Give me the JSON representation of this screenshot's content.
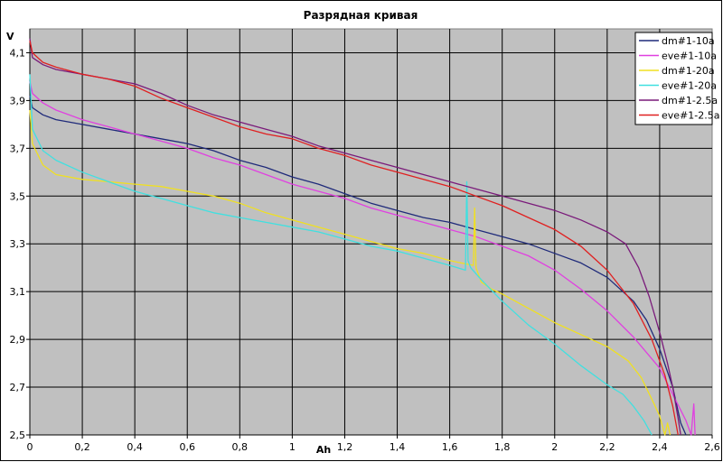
{
  "chart_data": {
    "type": "line",
    "title": "Разрядная кривая",
    "xlabel": "Ah",
    "ylabel": "V",
    "xlim": [
      0,
      2.6
    ],
    "ylim": [
      2.5,
      4.2
    ],
    "x_ticks": [
      "0",
      "0,2",
      "0,4",
      "0,6",
      "0,8",
      "1",
      "1,2",
      "1,4",
      "1,6",
      "1,8",
      "2",
      "2,2",
      "2,4",
      "2,6"
    ],
    "x_tick_values": [
      0,
      0.2,
      0.4,
      0.6,
      0.8,
      1.0,
      1.2,
      1.4,
      1.6,
      1.8,
      2.0,
      2.2,
      2.4,
      2.6
    ],
    "y_ticks": [
      "2,5",
      "2,7",
      "2,9",
      "3,1",
      "3,3",
      "3,5",
      "3,7",
      "3,9",
      "4,1"
    ],
    "y_tick_values": [
      2.5,
      2.7,
      2.9,
      3.1,
      3.3,
      3.5,
      3.7,
      3.9,
      4.1
    ],
    "grid": true,
    "plot_background": "#c0c0c0",
    "legend_position": "top-right",
    "series": [
      {
        "name": "dm#1-10a",
        "color": "#1f2a7a",
        "points": [
          [
            0,
            3.92
          ],
          [
            0.01,
            3.87
          ],
          [
            0.05,
            3.84
          ],
          [
            0.1,
            3.82
          ],
          [
            0.2,
            3.8
          ],
          [
            0.3,
            3.78
          ],
          [
            0.4,
            3.76
          ],
          [
            0.5,
            3.74
          ],
          [
            0.6,
            3.72
          ],
          [
            0.7,
            3.69
          ],
          [
            0.8,
            3.65
          ],
          [
            0.9,
            3.62
          ],
          [
            1.0,
            3.58
          ],
          [
            1.1,
            3.55
          ],
          [
            1.2,
            3.51
          ],
          [
            1.3,
            3.47
          ],
          [
            1.4,
            3.44
          ],
          [
            1.5,
            3.41
          ],
          [
            1.6,
            3.39
          ],
          [
            1.7,
            3.36
          ],
          [
            1.8,
            3.33
          ],
          [
            1.9,
            3.3
          ],
          [
            2.0,
            3.26
          ],
          [
            2.1,
            3.22
          ],
          [
            2.2,
            3.16
          ],
          [
            2.3,
            3.06
          ],
          [
            2.35,
            2.98
          ],
          [
            2.4,
            2.86
          ],
          [
            2.45,
            2.7
          ],
          [
            2.48,
            2.55
          ],
          [
            2.5,
            2.5
          ]
        ]
      },
      {
        "name": "eve#1-10a",
        "color": "#e040e0",
        "points": [
          [
            0,
            3.98
          ],
          [
            0.01,
            3.93
          ],
          [
            0.05,
            3.89
          ],
          [
            0.1,
            3.86
          ],
          [
            0.2,
            3.82
          ],
          [
            0.3,
            3.79
          ],
          [
            0.4,
            3.76
          ],
          [
            0.5,
            3.73
          ],
          [
            0.6,
            3.7
          ],
          [
            0.7,
            3.66
          ],
          [
            0.8,
            3.63
          ],
          [
            0.9,
            3.59
          ],
          [
            1.0,
            3.55
          ],
          [
            1.1,
            3.52
          ],
          [
            1.2,
            3.49
          ],
          [
            1.3,
            3.45
          ],
          [
            1.4,
            3.42
          ],
          [
            1.5,
            3.39
          ],
          [
            1.6,
            3.36
          ],
          [
            1.7,
            3.33
          ],
          [
            1.8,
            3.29
          ],
          [
            1.9,
            3.25
          ],
          [
            2.0,
            3.19
          ],
          [
            2.1,
            3.11
          ],
          [
            2.2,
            3.02
          ],
          [
            2.3,
            2.91
          ],
          [
            2.4,
            2.78
          ],
          [
            2.45,
            2.67
          ],
          [
            2.5,
            2.56
          ],
          [
            2.52,
            2.5
          ],
          [
            2.53,
            2.63
          ],
          [
            2.535,
            2.5
          ]
        ]
      },
      {
        "name": "dm#1-20a",
        "color": "#f0e020",
        "points": [
          [
            0,
            3.86
          ],
          [
            0.01,
            3.72
          ],
          [
            0.05,
            3.63
          ],
          [
            0.1,
            3.59
          ],
          [
            0.2,
            3.57
          ],
          [
            0.3,
            3.56
          ],
          [
            0.4,
            3.55
          ],
          [
            0.5,
            3.54
          ],
          [
            0.6,
            3.52
          ],
          [
            0.7,
            3.5
          ],
          [
            0.8,
            3.47
          ],
          [
            0.9,
            3.43
          ],
          [
            1.0,
            3.4
          ],
          [
            1.1,
            3.37
          ],
          [
            1.2,
            3.34
          ],
          [
            1.3,
            3.31
          ],
          [
            1.4,
            3.28
          ],
          [
            1.5,
            3.26
          ],
          [
            1.6,
            3.23
          ],
          [
            1.69,
            3.21
          ],
          [
            1.695,
            3.45
          ],
          [
            1.7,
            3.2
          ],
          [
            1.72,
            3.14
          ],
          [
            1.76,
            3.11
          ],
          [
            1.8,
            3.09
          ],
          [
            1.9,
            3.03
          ],
          [
            2.0,
            2.97
          ],
          [
            2.1,
            2.92
          ],
          [
            2.2,
            2.87
          ],
          [
            2.28,
            2.81
          ],
          [
            2.33,
            2.74
          ],
          [
            2.37,
            2.65
          ],
          [
            2.4,
            2.58
          ],
          [
            2.42,
            2.5
          ],
          [
            2.43,
            2.55
          ],
          [
            2.44,
            2.5
          ]
        ]
      },
      {
        "name": "eve#1-20a",
        "color": "#40e0e0",
        "points": [
          [
            0,
            4.01
          ],
          [
            0.01,
            3.78
          ],
          [
            0.05,
            3.69
          ],
          [
            0.1,
            3.65
          ],
          [
            0.2,
            3.6
          ],
          [
            0.3,
            3.56
          ],
          [
            0.4,
            3.52
          ],
          [
            0.5,
            3.49
          ],
          [
            0.6,
            3.46
          ],
          [
            0.7,
            3.43
          ],
          [
            0.8,
            3.41
          ],
          [
            0.9,
            3.39
          ],
          [
            1.0,
            3.37
          ],
          [
            1.1,
            3.35
          ],
          [
            1.2,
            3.32
          ],
          [
            1.3,
            3.29
          ],
          [
            1.4,
            3.27
          ],
          [
            1.5,
            3.24
          ],
          [
            1.6,
            3.21
          ],
          [
            1.66,
            3.19
          ],
          [
            1.665,
            3.56
          ],
          [
            1.67,
            3.23
          ],
          [
            1.68,
            3.2
          ],
          [
            1.72,
            3.15
          ],
          [
            1.8,
            3.06
          ],
          [
            1.9,
            2.96
          ],
          [
            2.0,
            2.88
          ],
          [
            2.1,
            2.79
          ],
          [
            2.2,
            2.71
          ],
          [
            2.26,
            2.67
          ],
          [
            2.3,
            2.62
          ],
          [
            2.34,
            2.56
          ],
          [
            2.37,
            2.5
          ]
        ]
      },
      {
        "name": "dm#1-2.5a",
        "color": "#7a1a7a",
        "points": [
          [
            0,
            4.16
          ],
          [
            0.01,
            4.08
          ],
          [
            0.05,
            4.05
          ],
          [
            0.1,
            4.03
          ],
          [
            0.2,
            4.01
          ],
          [
            0.3,
            3.99
          ],
          [
            0.4,
            3.97
          ],
          [
            0.5,
            3.93
          ],
          [
            0.6,
            3.88
          ],
          [
            0.7,
            3.84
          ],
          [
            0.8,
            3.81
          ],
          [
            0.9,
            3.78
          ],
          [
            1.0,
            3.75
          ],
          [
            1.1,
            3.71
          ],
          [
            1.2,
            3.68
          ],
          [
            1.3,
            3.65
          ],
          [
            1.4,
            3.62
          ],
          [
            1.5,
            3.59
          ],
          [
            1.6,
            3.56
          ],
          [
            1.7,
            3.53
          ],
          [
            1.8,
            3.5
          ],
          [
            1.9,
            3.47
          ],
          [
            2.0,
            3.44
          ],
          [
            2.1,
            3.4
          ],
          [
            2.2,
            3.35
          ],
          [
            2.27,
            3.3
          ],
          [
            2.32,
            3.2
          ],
          [
            2.36,
            3.08
          ],
          [
            2.4,
            2.93
          ],
          [
            2.43,
            2.8
          ],
          [
            2.45,
            2.7
          ],
          [
            2.47,
            2.57
          ],
          [
            2.48,
            2.5
          ]
        ]
      },
      {
        "name": "eve#1-2.5a",
        "color": "#e02020",
        "points": [
          [
            0,
            4.15
          ],
          [
            0.01,
            4.1
          ],
          [
            0.05,
            4.06
          ],
          [
            0.1,
            4.04
          ],
          [
            0.2,
            4.01
          ],
          [
            0.3,
            3.99
          ],
          [
            0.4,
            3.96
          ],
          [
            0.5,
            3.91
          ],
          [
            0.6,
            3.87
          ],
          [
            0.7,
            3.83
          ],
          [
            0.8,
            3.79
          ],
          [
            0.9,
            3.76
          ],
          [
            1.0,
            3.74
          ],
          [
            1.1,
            3.7
          ],
          [
            1.2,
            3.67
          ],
          [
            1.3,
            3.63
          ],
          [
            1.4,
            3.6
          ],
          [
            1.5,
            3.57
          ],
          [
            1.6,
            3.54
          ],
          [
            1.7,
            3.5
          ],
          [
            1.8,
            3.46
          ],
          [
            1.9,
            3.41
          ],
          [
            2.0,
            3.36
          ],
          [
            2.1,
            3.29
          ],
          [
            2.2,
            3.19
          ],
          [
            2.3,
            3.05
          ],
          [
            2.37,
            2.9
          ],
          [
            2.42,
            2.75
          ],
          [
            2.45,
            2.62
          ],
          [
            2.47,
            2.5
          ]
        ]
      }
    ]
  }
}
